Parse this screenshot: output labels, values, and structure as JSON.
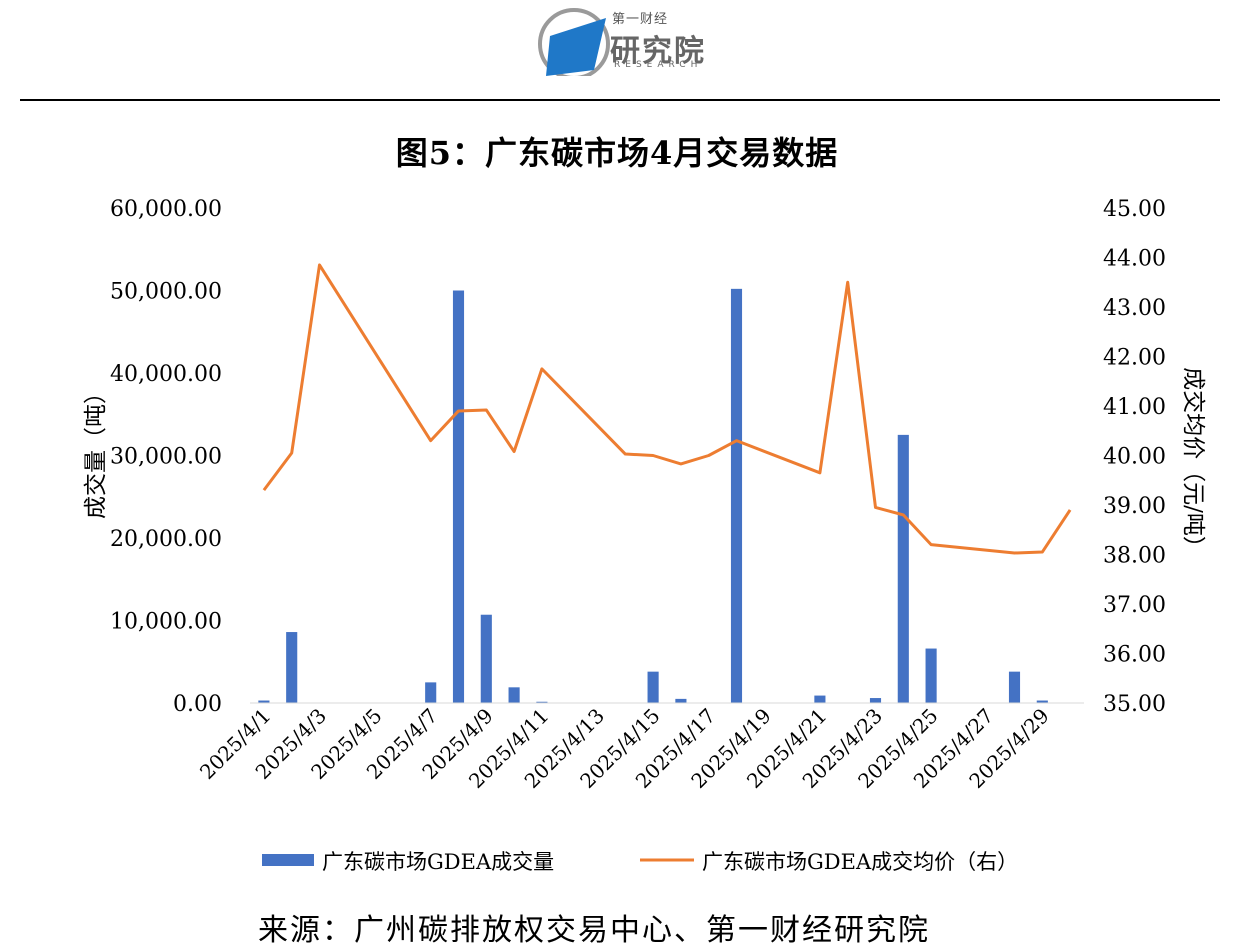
{
  "logo": {
    "sub": "第一财经",
    "main": "研究院",
    "en": "RESEARCH",
    "colors": {
      "blue": "#1f78c8",
      "gray": "#9a9a9a"
    }
  },
  "title": "图5：广东碳市场4月交易数据",
  "source": "来源：广州碳排放权交易中心、第一财经研究院",
  "chart_data": {
    "type": "bar+line",
    "title": "",
    "xlabel": "",
    "ylabel": "成交量（吨）",
    "y2label": "成交均价（元/吨）",
    "ylim": [
      0,
      60000
    ],
    "y2lim": [
      35,
      45
    ],
    "yticks": [
      "0.00",
      "10,000.00",
      "20,000.00",
      "30,000.00",
      "40,000.00",
      "50,000.00",
      "60,000.00"
    ],
    "y2ticks": [
      "35.00",
      "36.00",
      "37.00",
      "38.00",
      "39.00",
      "40.00",
      "41.00",
      "42.00",
      "43.00",
      "44.00",
      "45.00"
    ],
    "xticklabels": [
      "2025/4/1",
      "2025/4/3",
      "2025/4/5",
      "2025/4/7",
      "2025/4/9",
      "2025/4/11",
      "2025/4/13",
      "2025/4/15",
      "2025/4/17",
      "2025/4/19",
      "2025/4/21",
      "2025/4/23",
      "2025/4/25",
      "2025/4/27",
      "2025/4/29"
    ],
    "days": [
      "2025/4/1",
      "2025/4/2",
      "2025/4/3",
      "2025/4/4",
      "2025/4/5",
      "2025/4/6",
      "2025/4/7",
      "2025/4/8",
      "2025/4/9",
      "2025/4/10",
      "2025/4/11",
      "2025/4/12",
      "2025/4/13",
      "2025/4/14",
      "2025/4/15",
      "2025/4/16",
      "2025/4/17",
      "2025/4/18",
      "2025/4/19",
      "2025/4/20",
      "2025/4/21",
      "2025/4/22",
      "2025/4/23",
      "2025/4/24",
      "2025/4/25",
      "2025/4/26",
      "2025/4/27",
      "2025/4/28",
      "2025/4/29",
      "2025/4/30"
    ],
    "legend_position": "bottom",
    "series": [
      {
        "name": "广东碳市场GDEA成交量",
        "type": "bar",
        "axis": "left",
        "color": "#4472c4",
        "values": [
          300,
          8600,
          0,
          0,
          0,
          0,
          2500,
          50000,
          10700,
          1900,
          150,
          0,
          0,
          0,
          3800,
          500,
          0,
          50200,
          0,
          0,
          900,
          0,
          600,
          32500,
          6600,
          0,
          0,
          3800,
          300,
          0
        ]
      },
      {
        "name": "广东碳市场GDEA成交均价（右）",
        "type": "line",
        "axis": "right",
        "color": "#ed7d31",
        "values": [
          39.3,
          40.05,
          43.85,
          null,
          null,
          null,
          40.3,
          40.9,
          40.92,
          40.08,
          41.75,
          null,
          null,
          40.03,
          40.0,
          39.83,
          40.0,
          40.3,
          null,
          null,
          39.65,
          43.5,
          38.95,
          38.8,
          38.2,
          null,
          null,
          38.03,
          38.05,
          38.9
        ]
      }
    ]
  }
}
